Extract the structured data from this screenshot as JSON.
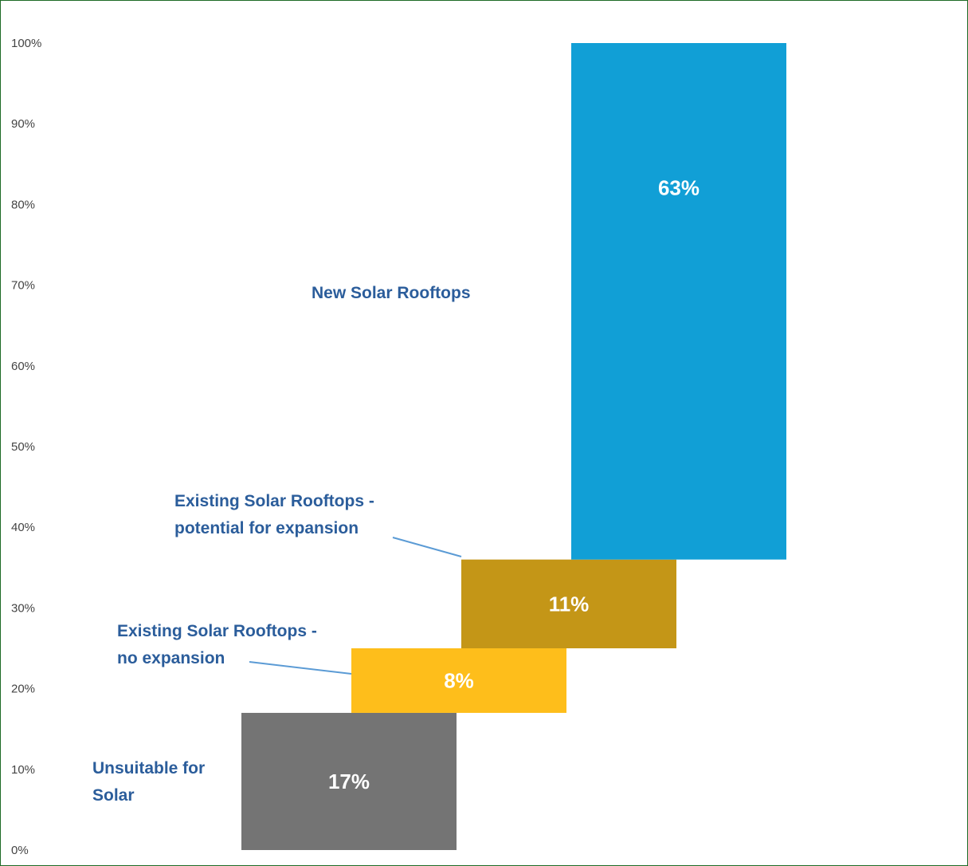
{
  "chart_data": {
    "type": "bar",
    "subtype": "waterfall",
    "title": "",
    "xlabel": "",
    "ylabel": "",
    "ylim": [
      0,
      100
    ],
    "y_ticks": [
      "0%",
      "10%",
      "20%",
      "30%",
      "40%",
      "50%",
      "60%",
      "70%",
      "80%",
      "90%",
      "100%"
    ],
    "grid": false,
    "legend": "none",
    "label_color": "#2b5d9b",
    "bars": [
      {
        "category": "Unsuitable for Solar",
        "label_lines": [
          "Unsuitable for",
          "Solar"
        ],
        "value": 17,
        "start": 0,
        "end": 17,
        "value_label": "17%",
        "color": "#747474"
      },
      {
        "category": "Existing Solar Rooftops - no expansion",
        "label_lines": [
          "Existing Solar Rooftops -",
          "no expansion"
        ],
        "value": 8,
        "start": 17,
        "end": 25,
        "value_label": "8%",
        "color": "#febe1b"
      },
      {
        "category": "Existing Solar Rooftops - potential for expansion",
        "label_lines": [
          "Existing Solar Rooftops -",
          "potential for expansion"
        ],
        "value": 11,
        "start": 25,
        "end": 36,
        "value_label": "11%",
        "color": "#c49617"
      },
      {
        "category": "New Solar Rooftops",
        "label_lines": [
          "New Solar Rooftops"
        ],
        "value": 63,
        "start": 36,
        "end": 100,
        "value_label": "63%",
        "color": "#119fd6"
      }
    ]
  }
}
